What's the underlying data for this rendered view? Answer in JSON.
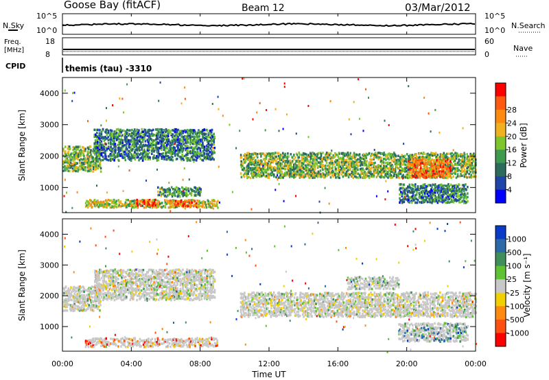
{
  "header": {
    "station": "Goose Bay (fitACF)",
    "beam": "Beam 12",
    "date": "03/Mar/2012"
  },
  "top_panels": {
    "nsky_label": "N.Sky",
    "nsearch_label": "N.Search",
    "nave_label": "Nave",
    "freq_label_1": "Freq.",
    "freq_label_2": "[MHz]",
    "cpid_label": "CPID",
    "cpid_text": "themis (tau) -3310",
    "noise_ticks": [
      "10^5",
      "10^0"
    ],
    "freq_ticks": [
      "18",
      "8"
    ],
    "nave_ticks": [
      "60",
      "0"
    ]
  },
  "chart_data": [
    {
      "type": "heatmap",
      "name": "power",
      "ylabel": "Slant Range [km]",
      "xlabel": "",
      "ylim": [
        200,
        4500
      ],
      "yticks": [
        1000,
        2000,
        3000,
        4000
      ],
      "xlim_hours": [
        0,
        24
      ],
      "colorbar_label": "Power [dB]",
      "colorbar_ticks": [
        "4",
        "8",
        "12",
        "16",
        "20",
        "24",
        "28"
      ],
      "colorbar_colors": [
        "#0000ff",
        "#1f45a8",
        "#2d6b5c",
        "#3e9a4f",
        "#7ec62b",
        "#f0b020",
        "#ff8a10",
        "#ff5a10",
        "#ff0000"
      ],
      "regions": [
        {
          "t0": 0.0,
          "t1": 2.2,
          "r0": 1500,
          "r1": 2300,
          "level": 0.45
        },
        {
          "t0": 1.8,
          "t1": 8.8,
          "r0": 1850,
          "r1": 2850,
          "level": 0.3
        },
        {
          "t0": 1.3,
          "t1": 9.0,
          "r0": 350,
          "r1": 600,
          "level": 0.55
        },
        {
          "t0": 4.2,
          "t1": 5.4,
          "r0": 400,
          "r1": 600,
          "level": 0.85
        },
        {
          "t0": 6.2,
          "t1": 7.8,
          "r0": 380,
          "r1": 580,
          "level": 0.85
        },
        {
          "t0": 10.3,
          "t1": 24.0,
          "r0": 1300,
          "r1": 2100,
          "level": 0.45
        },
        {
          "t0": 20.0,
          "t1": 22.5,
          "r0": 1300,
          "r1": 1900,
          "level": 0.75
        },
        {
          "t0": 5.5,
          "t1": 8.0,
          "r0": 700,
          "r1": 1000,
          "level": 0.35
        },
        {
          "t0": 19.5,
          "t1": 23.5,
          "r0": 500,
          "r1": 1100,
          "level": 0.3
        }
      ]
    },
    {
      "type": "heatmap",
      "name": "velocity",
      "ylabel": "Slant Range [km]",
      "xlabel": "Time UT",
      "ylim": [
        200,
        4500
      ],
      "yticks": [
        1000,
        2000,
        3000,
        4000
      ],
      "xlim_hours": [
        0,
        24
      ],
      "xtick_labels": [
        "00:00",
        "04:00",
        "08:00",
        "12:00",
        "16:00",
        "20:00",
        "00:00"
      ],
      "colorbar_label": "Velocity [m s⁻¹]",
      "colorbar_ticks": [
        "1000",
        "500",
        "100",
        "25",
        "-25",
        "-100",
        "-500",
        "-1000"
      ],
      "colorbar_colors": [
        "#0a3ac8",
        "#2a6aa8",
        "#3f8f5a",
        "#5ec232",
        "#c8c8c8",
        "#f2d000",
        "#ff8a10",
        "#ff5010",
        "#ff0000"
      ],
      "regions": [
        {
          "t0": 0.0,
          "t1": 2.2,
          "r0": 1500,
          "r1": 2300,
          "level": 0.5
        },
        {
          "t0": 1.8,
          "t1": 8.8,
          "r0": 1850,
          "r1": 2850,
          "level": 0.5
        },
        {
          "t0": 1.3,
          "t1": 9.0,
          "r0": 330,
          "r1": 620,
          "level": 0.75
        },
        {
          "t0": 10.3,
          "t1": 24.0,
          "r0": 1300,
          "r1": 2100,
          "level": 0.5
        },
        {
          "t0": 19.5,
          "t1": 23.5,
          "r0": 500,
          "r1": 1100,
          "level": 0.3
        },
        {
          "t0": 16.5,
          "t1": 19.5,
          "r0": 2200,
          "r1": 2600,
          "level": 0.4
        }
      ]
    }
  ]
}
